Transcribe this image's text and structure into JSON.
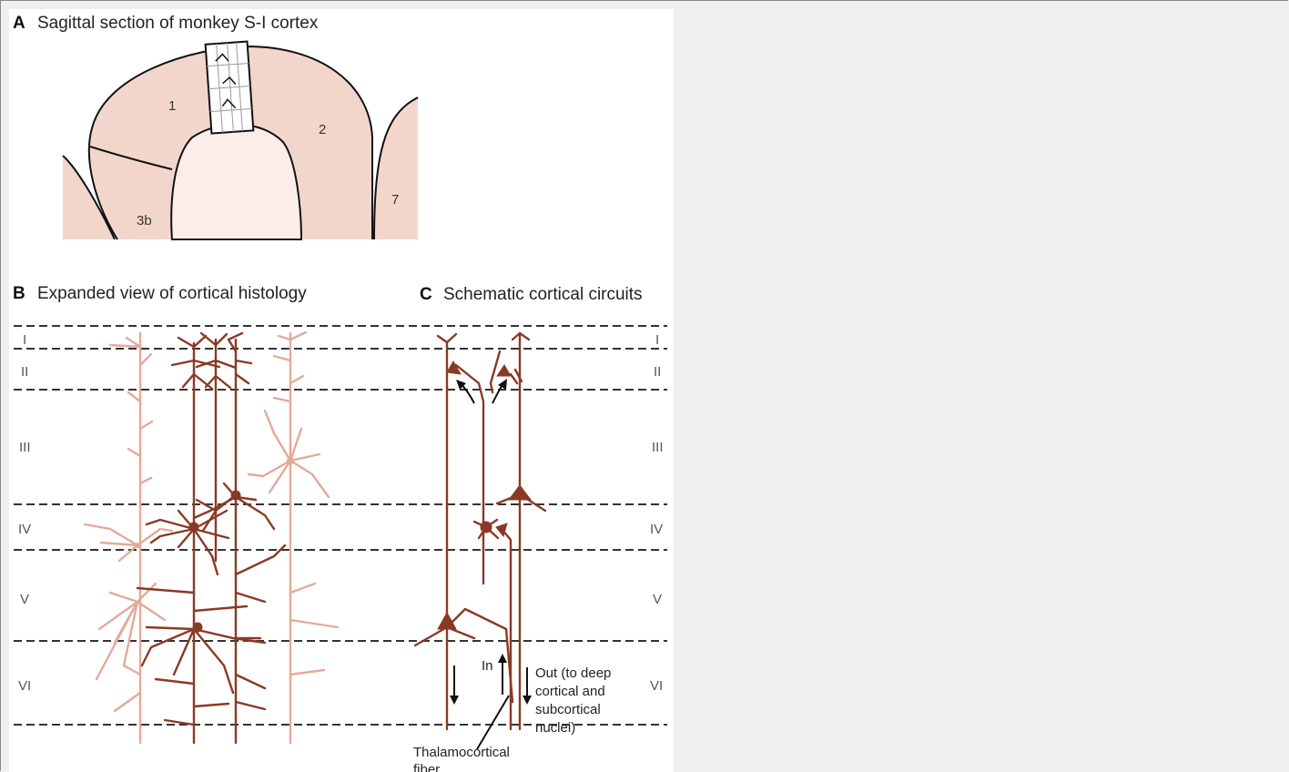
{
  "panels": {
    "a": {
      "letter": "A",
      "title": "Sagittal section of monkey S-I cortex",
      "regions": [
        "1",
        "2",
        "3b",
        "7"
      ]
    },
    "b": {
      "letter": "B",
      "title": "Expanded view of cortical histology"
    },
    "c": {
      "letter": "C",
      "title": "Schematic cortical circuits"
    }
  },
  "layers": [
    "I",
    "II",
    "III",
    "IV",
    "V",
    "VI"
  ],
  "circuit_labels": {
    "in": "In",
    "out_line1": "Out (to deep",
    "out_line2": "cortical and",
    "out_line3": "subcortical",
    "out_line4": "nuclei)",
    "fiber_line1": "Thalamocortical",
    "fiber_line2": "fiber"
  },
  "colors": {
    "cortex_fill": "#f2d6cc",
    "white_matter": "#fbeee9",
    "neuron_dark": "#8a3a24",
    "neuron_light": "#e3aa9a",
    "background": "#f0f0f0"
  }
}
